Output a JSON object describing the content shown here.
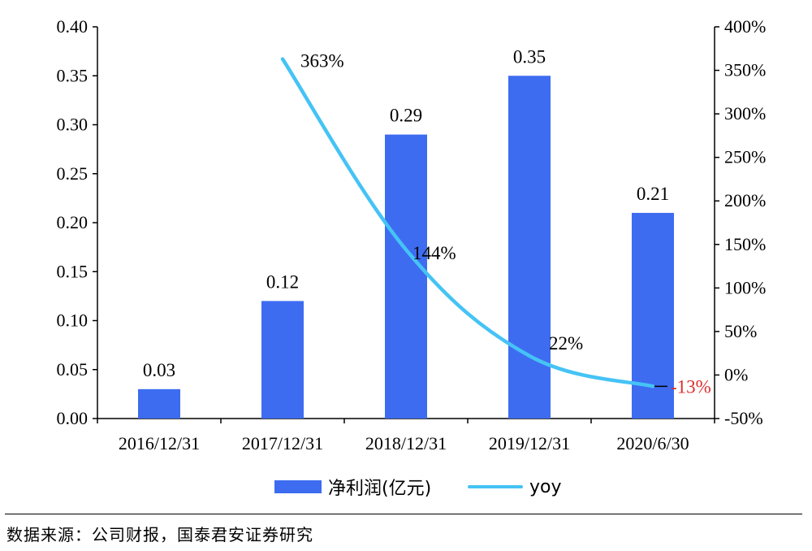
{
  "chart_data": {
    "type": "bar",
    "categories": [
      "2016/12/31",
      "2017/12/31",
      "2018/12/31",
      "2019/12/31",
      "2020/6/30"
    ],
    "series": [
      {
        "name": "净利润(亿元)",
        "type": "bar",
        "axis": "left",
        "values": [
          0.03,
          0.12,
          0.29,
          0.35,
          0.21
        ],
        "color": "#3d6cf0"
      },
      {
        "name": "yoy",
        "type": "line",
        "axis": "right",
        "values": [
          null,
          363,
          144,
          22,
          -13
        ],
        "color": "#45c3f5"
      }
    ],
    "bar_labels": [
      "0.03",
      "0.12",
      "0.29",
      "0.35",
      "0.21"
    ],
    "line_labels": [
      null,
      "363%",
      "144%",
      "22%",
      "-13%"
    ],
    "negative_label_color": "#e02b2b",
    "left_axis": {
      "ylim": [
        0,
        0.4
      ],
      "ticks": [
        "0.00",
        "0.05",
        "0.10",
        "0.15",
        "0.20",
        "0.25",
        "0.30",
        "0.35",
        "0.40"
      ]
    },
    "right_axis": {
      "ylim": [
        -50,
        400
      ],
      "ticks": [
        "-50%",
        "0%",
        "50%",
        "100%",
        "150%",
        "200%",
        "250%",
        "300%",
        "350%",
        "400%"
      ]
    },
    "grid": false,
    "legend_position": "bottom"
  },
  "legend": {
    "bar_label": "净利润(亿元)",
    "line_label": "yoy"
  },
  "source": "数据来源：公司财报，国泰君安证券研究"
}
